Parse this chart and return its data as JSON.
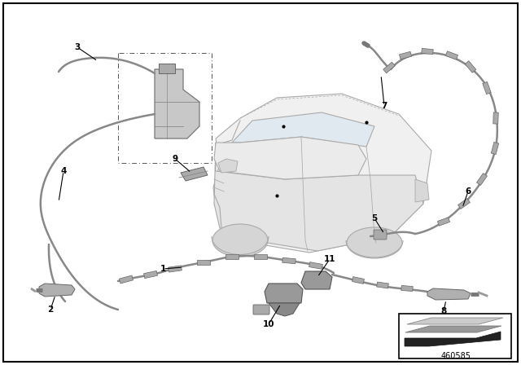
{
  "bg_color": "#ffffff",
  "diagram_number": "460585",
  "car_body_color": "#e8e8e8",
  "car_line_color": "#aaaaaa",
  "tube_color": "#888888",
  "part_color": "#999999",
  "reservoir_color": "#bbbbbb",
  "label_color": "#000000",
  "tube_lw": 1.8,
  "car_lw": 0.8
}
